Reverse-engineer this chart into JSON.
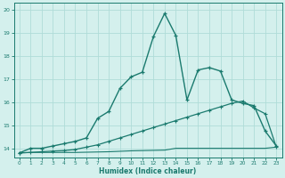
{
  "xlabel": "Humidex (Indice chaleur)",
  "background_color": "#d4f0ed",
  "grid_color": "#b0dcd8",
  "line_color": "#1a7a6e",
  "xlim": [
    -0.5,
    23.5
  ],
  "ylim": [
    13.6,
    20.3
  ],
  "xticks": [
    0,
    1,
    2,
    3,
    4,
    5,
    6,
    7,
    8,
    9,
    10,
    11,
    12,
    13,
    14,
    15,
    16,
    17,
    18,
    19,
    20,
    21,
    22,
    23
  ],
  "yticks": [
    14,
    15,
    16,
    17,
    18,
    19,
    20
  ],
  "curve1_x": [
    0,
    1,
    2,
    3,
    4,
    5,
    6,
    7,
    8,
    9,
    10,
    11,
    12,
    13,
    14,
    15,
    16,
    17,
    18,
    19,
    20,
    21,
    22,
    23
  ],
  "curve1_y": [
    13.8,
    14.0,
    14.0,
    14.1,
    14.2,
    14.3,
    14.45,
    15.3,
    15.6,
    16.6,
    17.1,
    17.3,
    18.85,
    19.85,
    18.9,
    16.1,
    17.4,
    17.5,
    17.35,
    16.1,
    15.95,
    15.85,
    14.75,
    14.1
  ],
  "curve2_x": [
    0,
    1,
    2,
    3,
    4,
    5,
    6,
    7,
    8,
    9,
    10,
    11,
    12,
    13,
    14,
    15,
    16,
    17,
    18,
    19,
    20,
    21,
    22,
    23
  ],
  "curve2_y": [
    13.8,
    13.82,
    13.85,
    13.88,
    13.9,
    13.95,
    14.05,
    14.15,
    14.3,
    14.45,
    14.6,
    14.75,
    14.9,
    15.05,
    15.2,
    15.35,
    15.5,
    15.65,
    15.8,
    15.95,
    16.05,
    15.75,
    15.5,
    14.05
  ],
  "curve3_x": [
    0,
    1,
    2,
    3,
    4,
    5,
    6,
    7,
    8,
    9,
    10,
    11,
    12,
    13,
    14,
    15,
    16,
    17,
    18,
    19,
    20,
    21,
    22,
    23
  ],
  "curve3_y": [
    13.8,
    13.82,
    13.82,
    13.82,
    13.82,
    13.82,
    13.83,
    13.84,
    13.85,
    13.87,
    13.89,
    13.9,
    13.91,
    13.92,
    14.0,
    14.0,
    14.0,
    14.0,
    14.0,
    14.0,
    14.0,
    14.0,
    14.0,
    14.05
  ]
}
